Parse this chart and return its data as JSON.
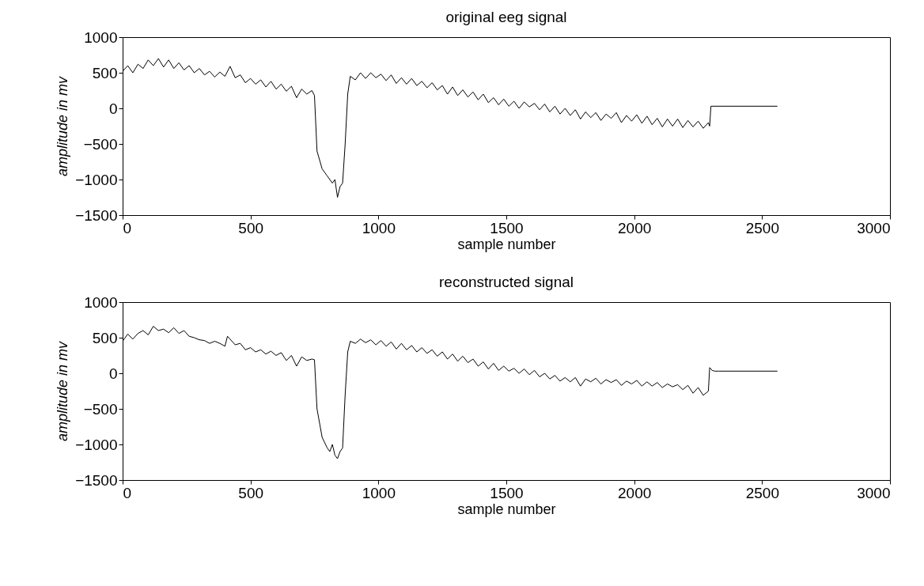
{
  "chart_data": [
    {
      "type": "line",
      "title": "original eeg signal",
      "xlabel": "sample number",
      "ylabel": "amplitude in mv",
      "xlim": [
        0,
        3000
      ],
      "xticks": [
        0,
        500,
        1000,
        1500,
        2000,
        2500,
        3000
      ],
      "ylim": [
        -1500,
        1000
      ],
      "yticks": [
        -1500,
        -1000,
        -500,
        0,
        500,
        1000
      ],
      "grid": false,
      "line_style": "solid",
      "x": [
        0,
        20,
        40,
        60,
        80,
        100,
        120,
        140,
        160,
        180,
        200,
        220,
        240,
        260,
        280,
        300,
        320,
        340,
        360,
        380,
        400,
        420,
        440,
        460,
        480,
        500,
        520,
        540,
        560,
        580,
        600,
        620,
        640,
        660,
        680,
        700,
        720,
        740,
        750,
        760,
        780,
        800,
        810,
        820,
        830,
        840,
        850,
        860,
        870,
        880,
        890,
        910,
        930,
        950,
        970,
        990,
        1010,
        1030,
        1050,
        1070,
        1090,
        1110,
        1130,
        1150,
        1170,
        1190,
        1210,
        1230,
        1250,
        1270,
        1290,
        1310,
        1330,
        1350,
        1370,
        1390,
        1410,
        1430,
        1450,
        1470,
        1490,
        1510,
        1530,
        1550,
        1570,
        1590,
        1610,
        1630,
        1650,
        1670,
        1690,
        1710,
        1730,
        1750,
        1770,
        1790,
        1810,
        1830,
        1850,
        1870,
        1890,
        1910,
        1930,
        1950,
        1970,
        1990,
        2010,
        2030,
        2050,
        2070,
        2090,
        2110,
        2130,
        2150,
        2170,
        2190,
        2210,
        2230,
        2250,
        2270,
        2290,
        2295,
        2300,
        2560
      ],
      "series": [
        {
          "color": "#000000",
          "values": [
            520,
            600,
            500,
            620,
            560,
            680,
            600,
            700,
            580,
            680,
            560,
            640,
            540,
            600,
            500,
            560,
            470,
            520,
            440,
            510,
            450,
            590,
            430,
            470,
            360,
            420,
            340,
            400,
            300,
            380,
            270,
            340,
            240,
            310,
            150,
            270,
            200,
            250,
            180,
            -600,
            -850,
            -950,
            -1000,
            -1050,
            -1000,
            -1250,
            -1100,
            -1050,
            -500,
            200,
            450,
            400,
            500,
            420,
            500,
            430,
            480,
            390,
            470,
            350,
            430,
            340,
            420,
            320,
            380,
            290,
            360,
            260,
            320,
            200,
            300,
            180,
            260,
            160,
            230,
            120,
            200,
            80,
            150,
            50,
            130,
            30,
            100,
            0,
            90,
            20,
            70,
            -20,
            60,
            -50,
            30,
            -80,
            0,
            -100,
            -20,
            -150,
            -50,
            -130,
            -60,
            -170,
            -80,
            -140,
            -60,
            -200,
            -100,
            -180,
            -90,
            -210,
            -110,
            -230,
            -140,
            -260,
            -150,
            -250,
            -150,
            -270,
            -170,
            -260,
            -180,
            -280,
            -200,
            -250,
            30,
            30
          ]
        }
      ]
    },
    {
      "type": "line",
      "title": "reconstructed signal",
      "xlabel": "sample number",
      "ylabel": "amplitude in mv",
      "xlim": [
        0,
        3000
      ],
      "xticks": [
        0,
        500,
        1000,
        1500,
        2000,
        2500,
        3000
      ],
      "ylim": [
        -1500,
        1000
      ],
      "yticks": [
        -1500,
        -1000,
        -500,
        0,
        500,
        1000
      ],
      "grid": false,
      "line_style": "solid",
      "x": [
        0,
        20,
        40,
        60,
        80,
        100,
        120,
        140,
        160,
        180,
        200,
        220,
        240,
        260,
        280,
        300,
        320,
        340,
        360,
        380,
        400,
        410,
        420,
        440,
        460,
        480,
        500,
        520,
        540,
        560,
        580,
        600,
        620,
        640,
        660,
        680,
        700,
        720,
        740,
        750,
        760,
        780,
        800,
        810,
        820,
        830,
        840,
        850,
        860,
        870,
        880,
        890,
        910,
        930,
        950,
        970,
        990,
        1010,
        1030,
        1050,
        1070,
        1090,
        1110,
        1130,
        1150,
        1170,
        1190,
        1210,
        1230,
        1250,
        1270,
        1290,
        1310,
        1330,
        1350,
        1370,
        1390,
        1410,
        1430,
        1450,
        1470,
        1490,
        1510,
        1530,
        1550,
        1570,
        1590,
        1610,
        1630,
        1650,
        1670,
        1690,
        1710,
        1730,
        1750,
        1770,
        1790,
        1810,
        1830,
        1850,
        1870,
        1890,
        1910,
        1930,
        1950,
        1970,
        1990,
        2010,
        2030,
        2050,
        2070,
        2090,
        2110,
        2130,
        2150,
        2170,
        2190,
        2210,
        2230,
        2250,
        2270,
        2290,
        2295,
        2305,
        2315,
        2330,
        2560
      ],
      "series": [
        {
          "color": "#000000",
          "values": [
            450,
            550,
            480,
            560,
            600,
            540,
            660,
            600,
            620,
            570,
            640,
            560,
            600,
            520,
            500,
            470,
            460,
            420,
            450,
            420,
            380,
            520,
            480,
            400,
            420,
            330,
            360,
            300,
            330,
            270,
            310,
            250,
            290,
            180,
            250,
            100,
            230,
            180,
            200,
            190,
            -500,
            -900,
            -1050,
            -1100,
            -1000,
            -1150,
            -1200,
            -1100,
            -1050,
            -300,
            300,
            450,
            420,
            480,
            430,
            470,
            400,
            460,
            380,
            440,
            340,
            420,
            330,
            390,
            300,
            360,
            280,
            330,
            240,
            300,
            200,
            270,
            170,
            240,
            150,
            200,
            100,
            160,
            60,
            140,
            40,
            100,
            30,
            70,
            0,
            60,
            -20,
            40,
            -50,
            0,
            -80,
            -30,
            -110,
            -60,
            -120,
            -60,
            -180,
            -80,
            -120,
            -70,
            -150,
            -90,
            -130,
            -90,
            -170,
            -110,
            -150,
            -100,
            -180,
            -120,
            -180,
            -130,
            -200,
            -150,
            -190,
            -160,
            -230,
            -170,
            -280,
            -200,
            -310,
            -250,
            80,
            40,
            30,
            30,
            30
          ]
        }
      ]
    }
  ]
}
